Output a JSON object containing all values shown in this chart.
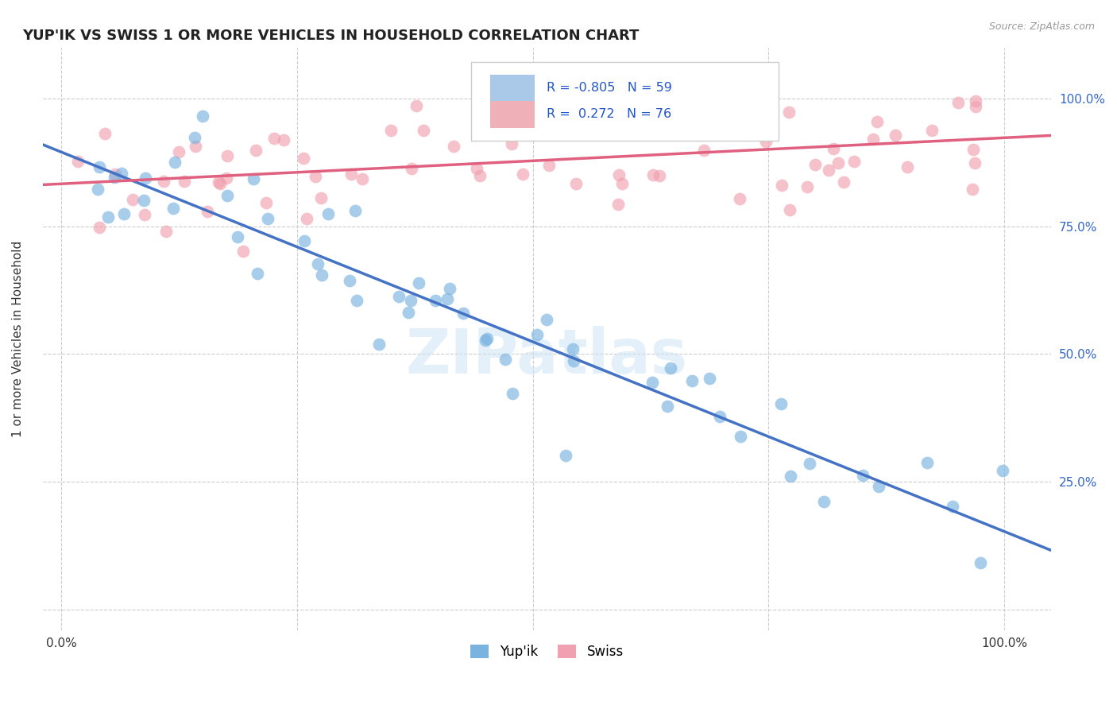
{
  "title": "YUP'IK VS SWISS 1 OR MORE VEHICLES IN HOUSEHOLD CORRELATION CHART",
  "source": "Source: ZipAtlas.com",
  "ylabel": "1 or more Vehicles in Household",
  "legend_yupik": "Yup'ik",
  "legend_swiss": "Swiss",
  "R_yupik": -0.805,
  "N_yupik": 59,
  "R_swiss": 0.272,
  "N_swiss": 76,
  "watermark": "ZIPatlas",
  "yupik_color": "#7ab3e0",
  "swiss_color": "#f0a0b0",
  "yupik_line_color": "#4472C4",
  "swiss_line_color": "#E06080",
  "background_color": "#ffffff",
  "grid_color": "#cccccc"
}
